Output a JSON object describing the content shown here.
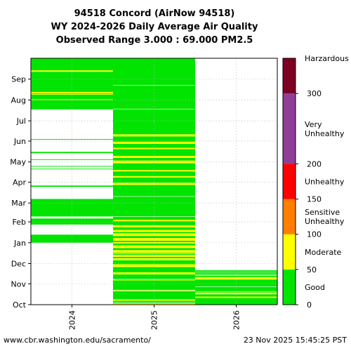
{
  "title_lines": [
    "94518 Concord (AirNow 94518)",
    "WY 2024-2026 Daily Average Air Quality",
    "Observed Range 3.000 : 69.000 PM2.5"
  ],
  "footer": {
    "source": "www.cbr.washington.edu/sacramento/",
    "timestamp": "23 Nov 2025 15:45:25 PST"
  },
  "chart_data": {
    "type": "heatmap",
    "columns": [
      "2024",
      "2025",
      "2026"
    ],
    "y_ticks": [
      "Oct",
      "Nov",
      "Dec",
      "Jan",
      "Feb",
      "Mar",
      "Apr",
      "May",
      "Jun",
      "Jul",
      "Aug",
      "Sep"
    ],
    "y_tick_days": [
      0,
      31,
      61,
      92,
      123,
      151,
      182,
      212,
      243,
      273,
      304,
      335
    ],
    "y_range_days": [
      0,
      366
    ],
    "colorbar": {
      "range": [
        0,
        350
      ],
      "ticks": [
        0,
        50,
        100,
        150,
        200,
        300
      ],
      "bands": [
        {
          "from": 0,
          "to": 50,
          "label": "Good",
          "color": "#00e400"
        },
        {
          "from": 50,
          "to": 100,
          "label": "Moderate",
          "color": "#ffff00"
        },
        {
          "from": 100,
          "to": 150,
          "label": "Sensitive Unhealthy",
          "color": "#ff7e00"
        },
        {
          "from": 150,
          "to": 200,
          "label": "Unhealthy",
          "color": "#ff0000"
        },
        {
          "from": 200,
          "to": 300,
          "label": "Very Unhealthy",
          "color": "#8f3f97"
        },
        {
          "from": 300,
          "to": 350,
          "label": "Harzardous",
          "color": "#7e0023"
        }
      ]
    },
    "segments": {
      "2024": [
        [
          92,
          104,
          "good"
        ],
        [
          119,
          128,
          "good"
        ],
        [
          131,
          157,
          "good"
        ],
        [
          175,
          177,
          "good"
        ],
        [
          201,
          202,
          "good"
        ],
        [
          205,
          206,
          "good"
        ],
        [
          215,
          216,
          "good"
        ],
        [
          225,
          227,
          "good"
        ],
        [
          245,
          246,
          "good"
        ],
        [
          290,
          304,
          "good"
        ],
        [
          304,
          305,
          "moderate"
        ],
        [
          305,
          312,
          "good"
        ],
        [
          312,
          313,
          "moderate"
        ],
        [
          313,
          314,
          "good"
        ],
        [
          314,
          316,
          "moderate"
        ],
        [
          316,
          346,
          "good"
        ],
        [
          346,
          348,
          "moderate"
        ],
        [
          348,
          366,
          "good"
        ]
      ],
      "2025": [
        [
          0,
          2,
          "moderate"
        ],
        [
          2,
          6,
          "good"
        ],
        [
          6,
          8,
          "moderate"
        ],
        [
          8,
          20,
          "good"
        ],
        [
          20,
          21,
          "moderate"
        ],
        [
          21,
          36,
          "good"
        ],
        [
          36,
          37,
          "moderate"
        ],
        [
          37,
          45,
          "good"
        ],
        [
          45,
          48,
          "moderate"
        ],
        [
          48,
          56,
          "good"
        ],
        [
          56,
          60,
          "moderate"
        ],
        [
          60,
          66,
          "good"
        ],
        [
          66,
          69,
          "moderate"
        ],
        [
          69,
          71,
          "good"
        ],
        [
          71,
          74,
          "moderate"
        ],
        [
          74,
          77,
          "good"
        ],
        [
          77,
          81,
          "moderate"
        ],
        [
          81,
          84,
          "good"
        ],
        [
          84,
          88,
          "moderate"
        ],
        [
          88,
          91,
          "good"
        ],
        [
          91,
          93,
          "moderate"
        ],
        [
          93,
          95,
          "good"
        ],
        [
          95,
          99,
          "moderate"
        ],
        [
          99,
          102,
          "good"
        ],
        [
          102,
          106,
          "moderate"
        ],
        [
          106,
          108,
          "good"
        ],
        [
          108,
          111,
          "moderate"
        ],
        [
          111,
          115,
          "good"
        ],
        [
          115,
          118,
          "moderate"
        ],
        [
          118,
          124,
          "good"
        ],
        [
          124,
          126,
          "moderate"
        ],
        [
          126,
          178,
          "good"
        ],
        [
          178,
          181,
          "moderate"
        ],
        [
          181,
          189,
          "good"
        ],
        [
          189,
          191,
          "moderate"
        ],
        [
          191,
          198,
          "good"
        ],
        [
          198,
          200,
          "moderate"
        ],
        [
          200,
          210,
          "good"
        ],
        [
          210,
          214,
          "moderate"
        ],
        [
          214,
          218,
          "good"
        ],
        [
          218,
          221,
          "moderate"
        ],
        [
          221,
          231,
          "good"
        ],
        [
          231,
          233,
          "moderate"
        ],
        [
          233,
          239,
          "good"
        ],
        [
          239,
          242,
          "moderate"
        ],
        [
          242,
          250,
          "good"
        ],
        [
          250,
          253,
          "moderate"
        ],
        [
          253,
          366,
          "good"
        ]
      ],
      "2026": [
        [
          0,
          10,
          "good"
        ],
        [
          10,
          12,
          "moderate"
        ],
        [
          12,
          16,
          "good"
        ],
        [
          16,
          18,
          "moderate"
        ],
        [
          18,
          38,
          "good"
        ],
        [
          38,
          41,
          "moderate"
        ],
        [
          41,
          43,
          "good"
        ],
        [
          43,
          44,
          "moderate"
        ],
        [
          44,
          51,
          "good"
        ]
      ]
    },
    "white_gaps": {
      "2024": [],
      "2025": [
        [
          3,
          4
        ],
        [
          21,
          22
        ],
        [
          37,
          38
        ],
        [
          75,
          76
        ],
        [
          130,
          131
        ],
        [
          160,
          161
        ],
        [
          290,
          291
        ],
        [
          325,
          326
        ]
      ],
      "2026": [
        [
          15,
          16
        ],
        [
          19,
          20
        ],
        [
          26,
          27
        ],
        [
          37,
          38
        ],
        [
          45,
          46
        ],
        [
          48,
          49
        ]
      ]
    },
    "category_colors": {
      "good": "#00e400",
      "moderate": "#ffff00"
    }
  }
}
